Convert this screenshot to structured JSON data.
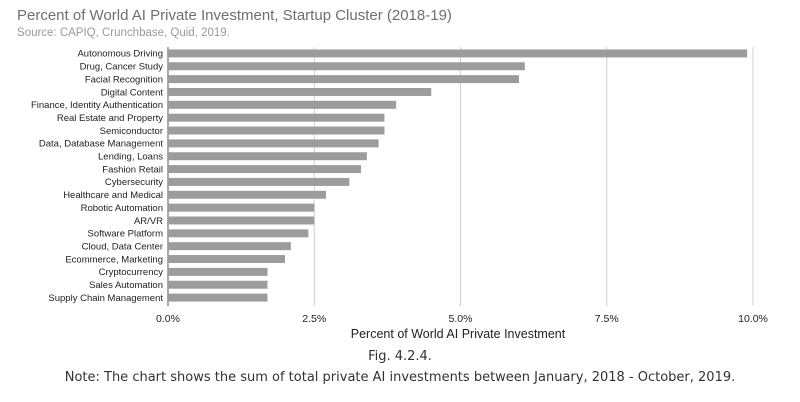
{
  "chart_data": {
    "type": "bar",
    "orientation": "horizontal",
    "title": "Percent of World AI Private Investment, Startup Cluster (2018-19)",
    "subtitle": "Source: CAPIQ, Crunchbase, Quid, 2019.",
    "xlabel": "Percent of World AI Private Investment",
    "ylabel": "",
    "xlim": [
      0,
      10
    ],
    "xticks": [
      "0.0%",
      "2.5%",
      "5.0%",
      "7.5%",
      "10.0%"
    ],
    "xtick_values": [
      0,
      2.5,
      5,
      7.5,
      10
    ],
    "grid": "vertical",
    "bar_color": "#9c9c9c",
    "categories": [
      "Autonomous Driving",
      "Drug, Cancer Study",
      "Facial Recognition",
      "Digital Content",
      "Finance, Identity Authentication",
      "Real Estate and Property",
      "Semiconductor",
      "Data, Database Management",
      "Lending, Loans",
      "Fashion Retail",
      "Cybersecurity",
      "Healthcare and Medical",
      "Robotic Automation",
      "AR/VR",
      "Software Platform",
      "Cloud, Data Center",
      "Ecommerce, Marketing",
      "Cryptocurrency",
      "Sales Automation",
      "Supply Chain Management"
    ],
    "values": [
      9.9,
      6.1,
      6.0,
      4.5,
      3.9,
      3.7,
      3.7,
      3.6,
      3.4,
      3.3,
      3.1,
      2.7,
      2.5,
      2.5,
      2.4,
      2.1,
      2.0,
      1.7,
      1.7,
      1.7
    ]
  },
  "caption": {
    "figure": "Fig. 4.2.4.",
    "note": "Note: The chart shows the sum of total private AI investments between January, 2018 - October, 2019."
  }
}
